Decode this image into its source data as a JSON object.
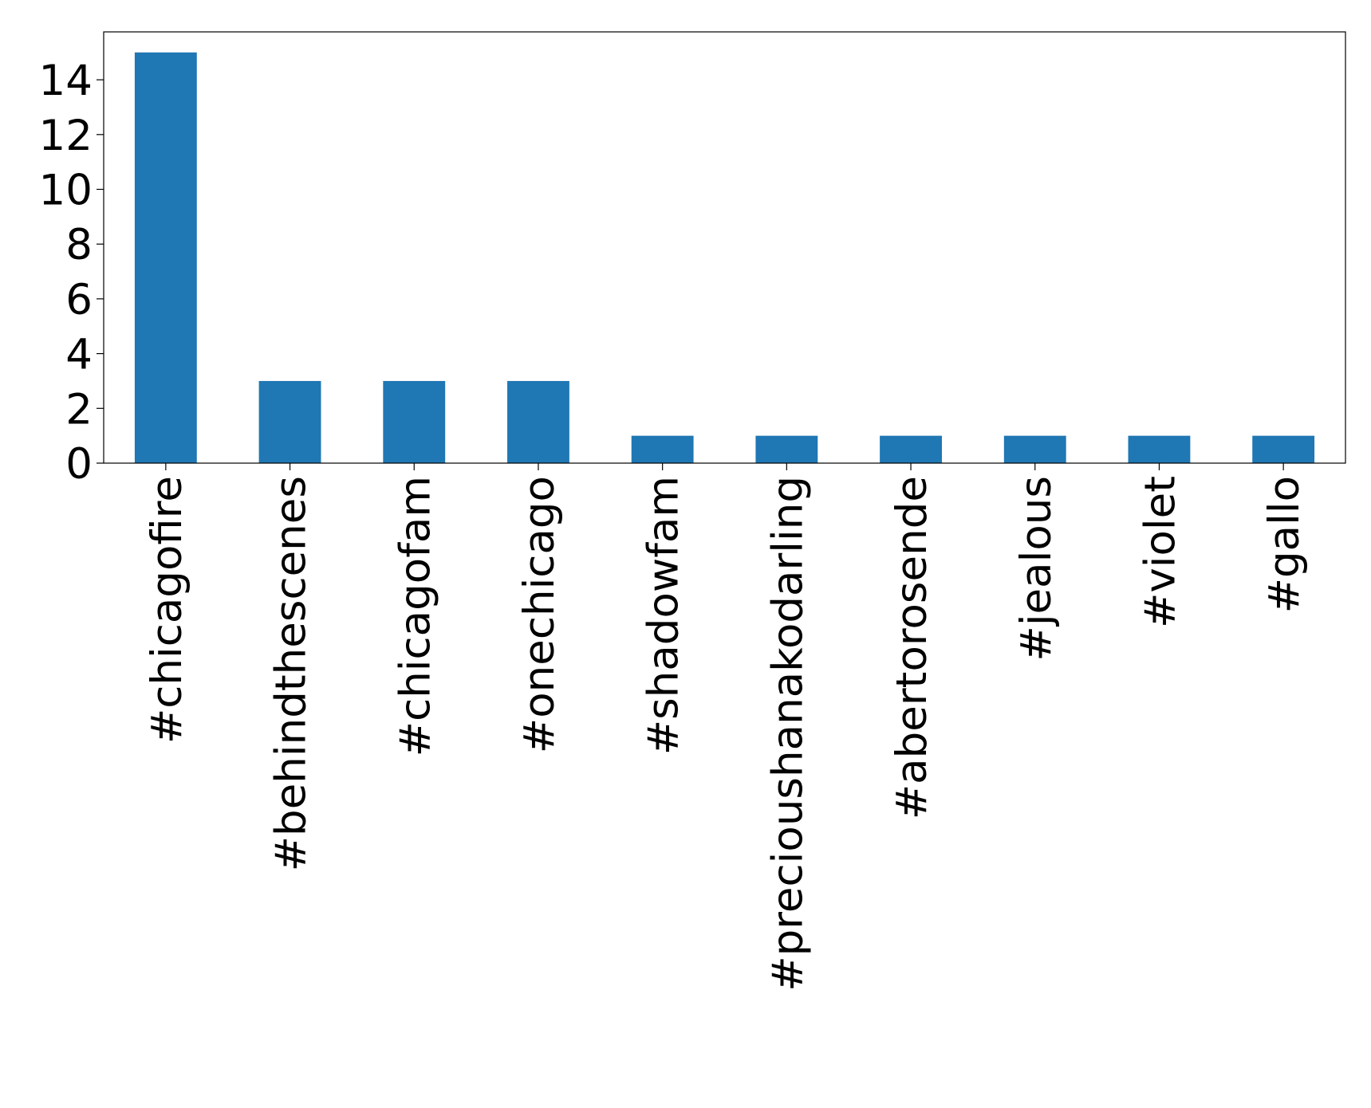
{
  "chart_data": {
    "type": "bar",
    "categories": [
      "#chicagofire",
      "#behindthescenes",
      "#chicagofam",
      "#onechicago",
      "#shadowfam",
      "#precioushanakodarling",
      "#abertorosende",
      "#jealous",
      "#violet",
      "#gallo"
    ],
    "values": [
      15,
      3,
      3,
      3,
      1,
      1,
      1,
      1,
      1,
      1
    ],
    "color": "#1f77b4",
    "ylim": [
      0,
      15.75
    ],
    "yticks": [
      0,
      2,
      4,
      6,
      8,
      10,
      12,
      14
    ],
    "grid": false
  }
}
